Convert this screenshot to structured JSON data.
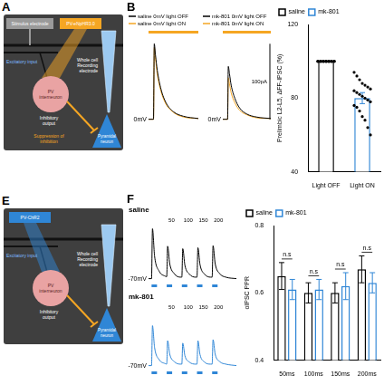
{
  "diagrams": [
    {
      "panel": "A",
      "stimulus": "Stimulus electrode",
      "light": {
        "text": "PV-eNpHR3.0",
        "color": "#f5a623"
      },
      "input": "Excitatory input",
      "interneuron": "PV interneuron",
      "output": "Inhibitory output",
      "effect": "Suppression of inhibition",
      "recording": "Whole cell Recording electrode",
      "target": "Pyramidal neuron"
    },
    {
      "panel": "E",
      "light": {
        "text": "PV-ChR2",
        "color": "#2f86d6"
      },
      "input": "Excitatory input",
      "interneuron": "PV interneuron",
      "output": "Inhibitory output",
      "recording": "Whole cell Recording electrode",
      "target": "Pyramidal neuron"
    }
  ],
  "chart_data": [
    {
      "type": "line",
      "panel": "B",
      "tick_labels": false,
      "x": [
        -20,
        0,
        3,
        8,
        15,
        30,
        50,
        80,
        120,
        180
      ],
      "xlim": [
        -20,
        180
      ],
      "ylim": [
        -10,
        110
      ],
      "stimulus": {
        "start": -20,
        "end": 180,
        "color": "#f5a623"
      },
      "annotations": [
        {
          "text": "0mV",
          "y": 0
        }
      ],
      "series": [
        {
          "name": "saline 0mV light OFF",
          "color": "#000000",
          "values": [
            0,
            0,
            100,
            85,
            65,
            40,
            22,
            10,
            4,
            1
          ]
        },
        {
          "name": "saline 0mV light ON",
          "color": "#f5a623",
          "values": [
            0,
            0,
            95,
            80,
            60,
            37,
            20,
            9,
            3,
            1
          ]
        }
      ]
    },
    {
      "type": "line",
      "tick_labels": false,
      "x": [
        -20,
        0,
        3,
        8,
        15,
        30,
        50,
        80,
        120,
        180
      ],
      "xlim": [
        -20,
        180
      ],
      "ylim": [
        -10,
        110
      ],
      "stimulus": {
        "start": -20,
        "end": 180,
        "color": "#f5a623"
      },
      "annotations": [
        {
          "text": "0mV",
          "y": 0
        }
      ],
      "scale_bar": {
        "value": 100,
        "label": "100pA"
      },
      "series": [
        {
          "name": "mk-801 0mV light OFF",
          "color": "#000000",
          "values": [
            0,
            0,
            70,
            60,
            45,
            28,
            15,
            7,
            3,
            1
          ]
        },
        {
          "name": "mk-801 0mV light ON",
          "color": "#f5a623",
          "values": [
            0,
            0,
            55,
            47,
            35,
            22,
            12,
            6,
            2,
            1
          ]
        }
      ]
    },
    {
      "type": "bar",
      "categories": [
        "Light OFF",
        "Light ON"
      ],
      "y_label": "Prelimbic L2-L5, ΔFF-IPSC (%)",
      "ylim": [
        40,
        120
      ],
      "yticks": [
        40,
        80,
        120
      ],
      "grid": false,
      "legend": "top",
      "series": [
        {
          "name": "saline",
          "color": "#000000",
          "values": [
            100,
            null
          ]
        },
        {
          "name": "mk-801",
          "color": "#2f86d6",
          "values": [
            null,
            80
          ],
          "errors": [
            null,
            3
          ]
        }
      ],
      "points": [
        [
          100,
          100,
          100,
          100,
          100,
          100,
          100,
          100,
          100,
          100,
          100,
          100,
          100,
          100,
          100,
          100,
          100,
          100,
          100,
          100
        ],
        [
          94,
          92,
          90,
          88,
          87,
          86,
          85,
          84,
          83,
          82,
          81,
          80,
          79,
          78,
          76,
          75,
          73,
          70,
          68,
          64,
          60
        ]
      ]
    },
    {
      "type": "line",
      "panel": "F",
      "title": "saline",
      "tick_labels": false,
      "x": [
        -10,
        0,
        3,
        10,
        25,
        45,
        50,
        53,
        60,
        75,
        95,
        100,
        103,
        110,
        125,
        145,
        150,
        153,
        160,
        175,
        195,
        200,
        203,
        210,
        225,
        245,
        280
      ],
      "xlim": [
        -10,
        280
      ],
      "ylim": [
        -8,
        110
      ],
      "stimulus": {
        "pulses": [
          0,
          50,
          100,
          150,
          200
        ],
        "color": "#2f86d6"
      },
      "pulse_labels": [
        null,
        "50",
        "100",
        "150",
        "200"
      ],
      "annotations": [
        {
          "text": "-70mV",
          "y": 0
        }
      ],
      "series": [
        {
          "color": "#000000",
          "values": [
            0,
            0,
            100,
            45,
            15,
            5,
            4,
            65,
            30,
            10,
            3,
            3,
            60,
            27,
            9,
            3,
            3,
            62,
            28,
            9,
            3,
            3,
            66,
            30,
            10,
            3,
            0
          ]
        }
      ]
    },
    {
      "type": "line",
      "title": "mk-801",
      "tick_labels": false,
      "x": [
        -10,
        0,
        3,
        10,
        25,
        45,
        50,
        53,
        60,
        75,
        95,
        100,
        103,
        110,
        125,
        145,
        150,
        153,
        160,
        175,
        195,
        200,
        203,
        210,
        225,
        245,
        280
      ],
      "xlim": [
        -10,
        280
      ],
      "ylim": [
        -8,
        110
      ],
      "stimulus": {
        "pulses": [
          0,
          50,
          100,
          150,
          200
        ],
        "color": "#2f86d6"
      },
      "pulse_labels": [
        null,
        "50",
        "100",
        "150",
        "200"
      ],
      "annotations": [
        {
          "text": "-70mV",
          "y": 0
        }
      ],
      "series": [
        {
          "color": "#2f86d6",
          "values": [
            0,
            0,
            80,
            36,
            12,
            4,
            3,
            50,
            23,
            8,
            3,
            3,
            45,
            20,
            7,
            3,
            3,
            50,
            22,
            7,
            3,
            3,
            52,
            23,
            8,
            3,
            0
          ]
        }
      ]
    },
    {
      "type": "bar",
      "categories": [
        "50ms",
        "100ms",
        "150ms",
        "200ms"
      ],
      "y_label": "oIPSC PPR",
      "ylim": [
        0.4,
        0.8
      ],
      "yticks": [
        0.4,
        0.6,
        0.8
      ],
      "grid": false,
      "legend": "top",
      "series": [
        {
          "name": "saline",
          "color": "#000000",
          "values": [
            0.65,
            0.6,
            0.6,
            0.67
          ],
          "errors": [
            0.04,
            0.03,
            0.03,
            0.04
          ]
        },
        {
          "name": "mk-801",
          "color": "#2f86d6",
          "values": [
            0.61,
            0.61,
            0.62,
            0.63
          ],
          "errors": [
            0.03,
            0.03,
            0.04,
            0.03
          ]
        }
      ],
      "annotations": [
        "n.s",
        "n.s",
        "n.s",
        "n.s"
      ]
    }
  ]
}
